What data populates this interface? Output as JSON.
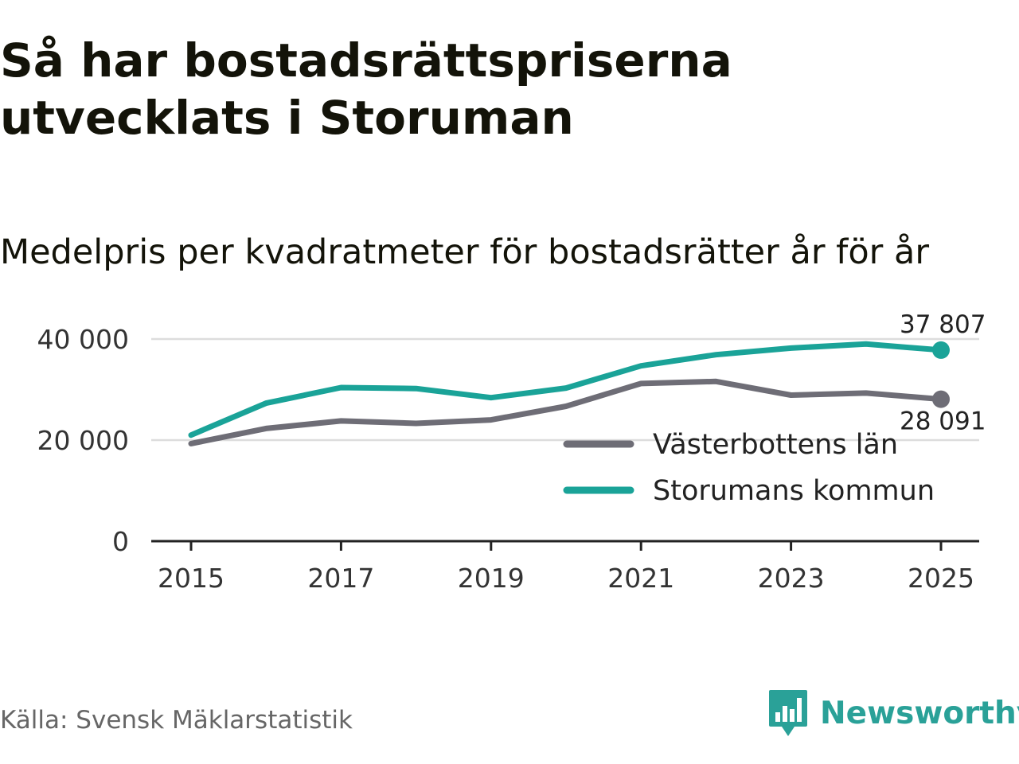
{
  "header": {
    "title": "Så har bostadsrättspriserna utvecklats i Storuman",
    "subtitle": "Medelpris per kvadratmeter för bostadsrätter år för år"
  },
  "footer": {
    "source": "Källa: Svensk Mäklarstatistik",
    "brand": "Newsworthy",
    "brand_icon": "bar-chart-speech-bubble-icon"
  },
  "colors": {
    "storuman": "#1aa398",
    "vasterbotten": "#6e6d76",
    "grid": "#dddddd",
    "axis": "#222222",
    "brand": "#2aa198"
  },
  "chart_data": {
    "type": "line",
    "title": "Medelpris per kvadratmeter för bostadsrätter år för år",
    "xlabel": "",
    "ylabel": "",
    "x": [
      2015,
      2016,
      2017,
      2018,
      2019,
      2020,
      2021,
      2022,
      2023,
      2024,
      2025
    ],
    "xticks": [
      "2015",
      "2017",
      "2019",
      "2021",
      "2023",
      "2025"
    ],
    "xlim": [
      2015,
      2025
    ],
    "ylim": [
      0,
      40000
    ],
    "yticks": [
      {
        "value": 0,
        "label": "0"
      },
      {
        "value": 20000,
        "label": "20 000"
      },
      {
        "value": 40000,
        "label": "40 000"
      }
    ],
    "grid": true,
    "legend_position": "bottom-right",
    "series": [
      {
        "name": "Västerbottens län",
        "color": "#6e6d76",
        "values": [
          19300,
          22300,
          23800,
          23300,
          24000,
          26700,
          31200,
          31600,
          28900,
          29300,
          28091
        ],
        "end_label": "28 091"
      },
      {
        "name": "Storumans kommun",
        "color": "#1aa398",
        "values": [
          21000,
          27300,
          30400,
          30200,
          28400,
          30300,
          34700,
          36900,
          38200,
          39000,
          37807
        ],
        "end_label": "37 807"
      }
    ]
  }
}
